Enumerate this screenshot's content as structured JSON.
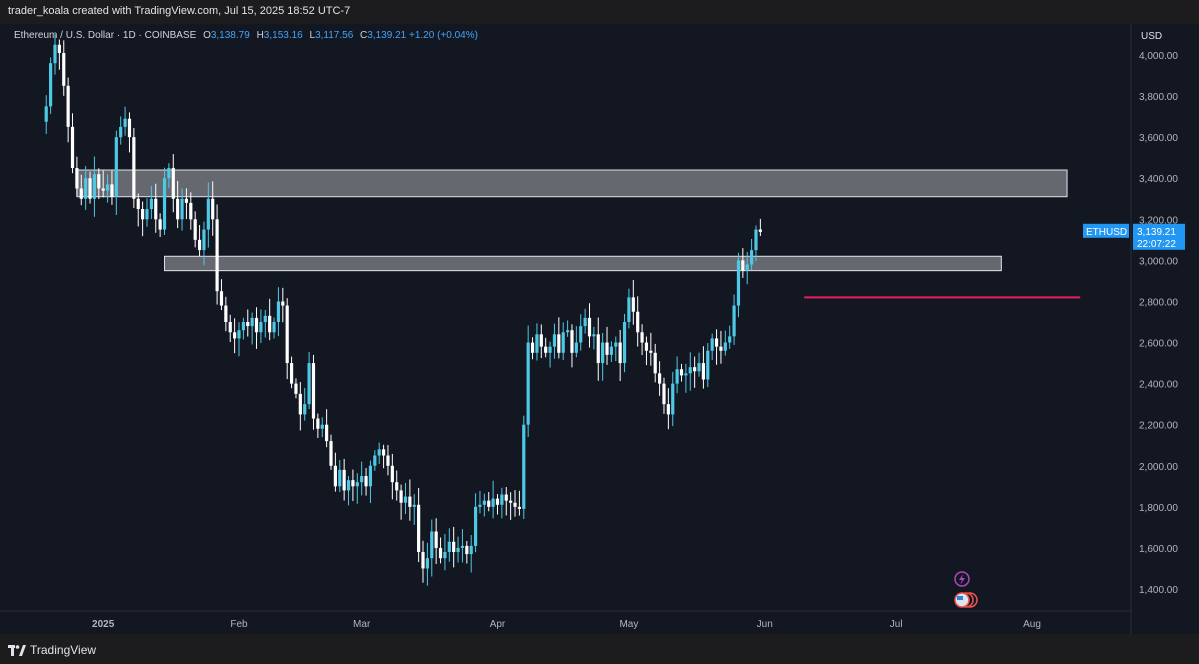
{
  "header": {
    "credit": "trader_koala created with TradingView.com, Jul 15, 2025 18:52 UTC-7"
  },
  "legend": {
    "title": "Ethereum / U.S. Dollar · 1D · COINBASE",
    "o_label": "O",
    "o": "3,138.79",
    "h_label": "H",
    "h": "3,153.16",
    "l_label": "L",
    "l": "3,117.56",
    "c_label": "C",
    "c": "3,139.21",
    "change": "+1.20 (+0.04%)"
  },
  "price_scale": {
    "currency": "USD"
  },
  "last_price": {
    "symbol": "ETHUSD",
    "price": "3,139.21",
    "countdown": "22:07:22",
    "color": "#2196f3"
  },
  "footer": {
    "brand": "TradingView"
  },
  "colors": {
    "up": "#4dc9e6",
    "down": "#ffffff",
    "zone_fill": "rgba(255,255,255,0.35)",
    "level_line": "#e91e63"
  },
  "chart_data": {
    "type": "candlestick",
    "symbol": "ETHUSD",
    "ylim": [
      1300,
      4150
    ],
    "y_ticks": [
      "4,000.00",
      "3,800.00",
      "3,600.00",
      "3,400.00",
      "3,200.00",
      "3,000.00",
      "2,800.00",
      "2,600.00",
      "2,400.00",
      "2,200.00",
      "2,000.00",
      "1,800.00",
      "1,600.00",
      "1,400.00"
    ],
    "y_tick_values": [
      4000,
      3800,
      3600,
      3400,
      3200,
      3000,
      2800,
      2600,
      2400,
      2200,
      2000,
      1800,
      1600,
      1400
    ],
    "x_labels": [
      "2025",
      "Feb",
      "Mar",
      "Apr",
      "May",
      "Jun",
      "Jul",
      "Aug"
    ],
    "x_label_dates": [
      "2025-01-01",
      "2025-02-01",
      "2025-03-01",
      "2025-04-01",
      "2025-05-01",
      "2025-06-01",
      "2025-07-01",
      "2025-08-01"
    ],
    "date_range": [
      "2024-12-16",
      "2025-08-20"
    ],
    "zones": [
      {
        "from": "2024-12-26",
        "to": "2025-08-09",
        "low": 3310,
        "high": 3440
      },
      {
        "from": "2025-01-15",
        "to": "2025-07-25",
        "low": 2950,
        "high": 3020
      }
    ],
    "levels": [
      {
        "from": "2025-06-10",
        "to": "2025-08-12",
        "price": 2820
      }
    ],
    "closes": [
      3750,
      3960,
      4050,
      4010,
      3850,
      3650,
      3450,
      3350,
      3300,
      3400,
      3300,
      3420,
      3350,
      3340,
      3370,
      3310,
      3600,
      3650,
      3690,
      3600,
      3300,
      3250,
      3200,
      3250,
      3300,
      3200,
      3150,
      3400,
      3450,
      3300,
      3200,
      3300,
      3280,
      3200,
      3100,
      3050,
      3150,
      3300,
      3200,
      2850,
      2780,
      2700,
      2650,
      2620,
      2660,
      2700,
      2680,
      2720,
      2650,
      2700,
      2730,
      2650,
      2700,
      2800,
      2780,
      2500,
      2400,
      2350,
      2250,
      2300,
      2500,
      2230,
      2180,
      2200,
      2120,
      2000,
      1900,
      1980,
      1880,
      1930,
      1900,
      1920,
      1950,
      1900,
      2000,
      2050,
      2080,
      2050,
      2000,
      1920,
      1880,
      1820,
      1850,
      1800,
      1810,
      1580,
      1500,
      1550,
      1680,
      1600,
      1550,
      1580,
      1630,
      1580,
      1600,
      1610,
      1570,
      1610,
      1800,
      1810,
      1830,
      1800,
      1840,
      1810,
      1860,
      1830,
      1820,
      1800,
      1790,
      2200,
      2600,
      2550,
      2640,
      2580,
      2550,
      2580,
      2640,
      2550,
      2650,
      2660,
      2550,
      2600,
      2680,
      2720,
      2630,
      2640,
      2500,
      2600,
      2540,
      2580,
      2600,
      2500,
      2700,
      2820,
      2750,
      2650,
      2600,
      2560,
      2550,
      2450,
      2400,
      2300,
      2250,
      2400,
      2470,
      2440,
      2450,
      2480,
      2460,
      2500,
      2420,
      2560,
      2620,
      2580,
      2560,
      2600,
      2630,
      2780,
      3000,
      2950,
      2980,
      3050,
      3150,
      3139
    ],
    "start_date": "2024-12-16"
  }
}
